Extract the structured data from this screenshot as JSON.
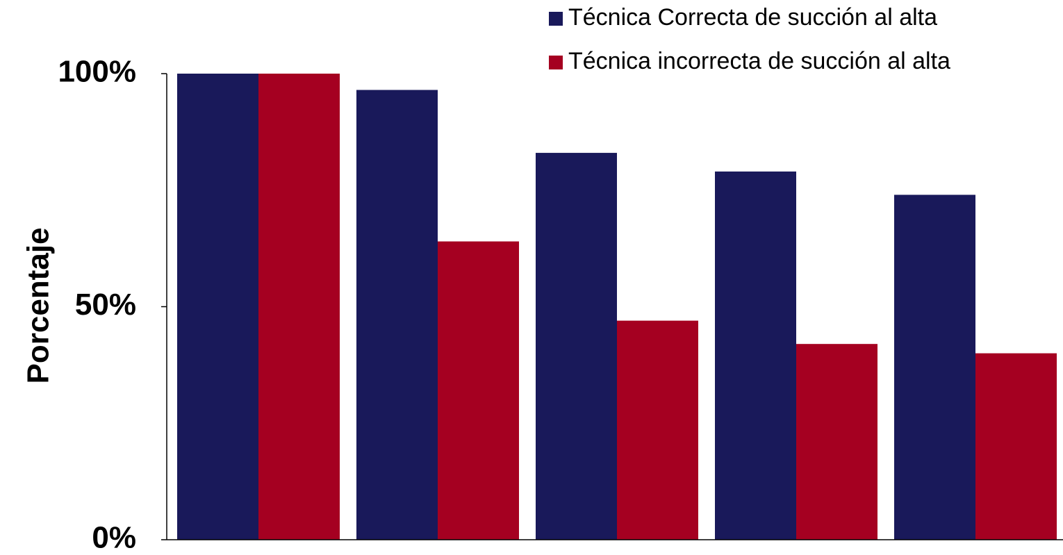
{
  "chart_data": {
    "type": "bar",
    "title": "",
    "xlabel": "",
    "ylabel": "Porcentaje",
    "ylim": [
      0,
      100
    ],
    "yticks": [
      {
        "value": 0,
        "label": "0%"
      },
      {
        "value": 50,
        "label": "50%"
      },
      {
        "value": 100,
        "label": "100%"
      }
    ],
    "categories": [
      "",
      "",
      "",
      "",
      ""
    ],
    "series": [
      {
        "name": "Técnica Correcta  de succión al alta",
        "color": "#19195a",
        "values": [
          100,
          96.5,
          83,
          79,
          74
        ]
      },
      {
        "name": "Técnica incorrecta  de succión al alta",
        "color": "#a50021",
        "values": [
          100,
          64,
          47,
          42,
          40
        ]
      }
    ],
    "legend_position": "top-right",
    "grid": false
  }
}
